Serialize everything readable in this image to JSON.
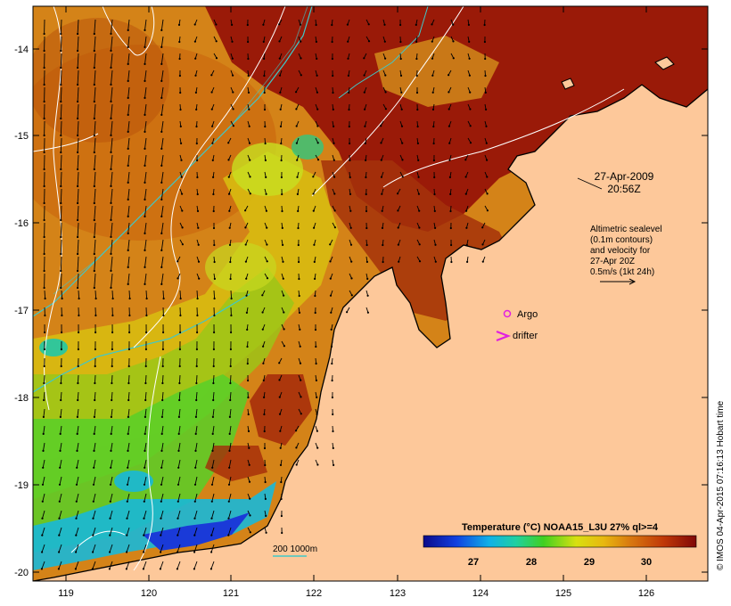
{
  "map": {
    "y_ticks": [
      "-14",
      "-15",
      "-16",
      "-17",
      "-18",
      "-19",
      "-20"
    ],
    "x_ticks": [
      "119",
      "120",
      "121",
      "122",
      "123",
      "124",
      "125",
      "126"
    ],
    "date": "27-Apr-2009",
    "time": "20:56Z",
    "info_lines": [
      "Altimetric sealevel",
      "(0.1m contours)",
      "and velocity for",
      "27-Apr 20Z",
      "0.5m/s (1kt 24h)"
    ],
    "argo_label": "Argo",
    "drifter_label": "drifter",
    "isobath_label": "200  1000m",
    "colorbar_title": "Temperature (°C) NOAA15_L3U 27% ql>=4",
    "colorbar_ticks": [
      "27",
      "28",
      "29",
      "30"
    ],
    "credit": "© IMOS 04-Apr-2015 07:16:13 Hobart time"
  },
  "colors": {
    "land": "#fdc89a",
    "cold": "#0a12a0",
    "warm": "#8c0a06",
    "argo": "#e020e0",
    "isobath": "#40c8c8"
  }
}
